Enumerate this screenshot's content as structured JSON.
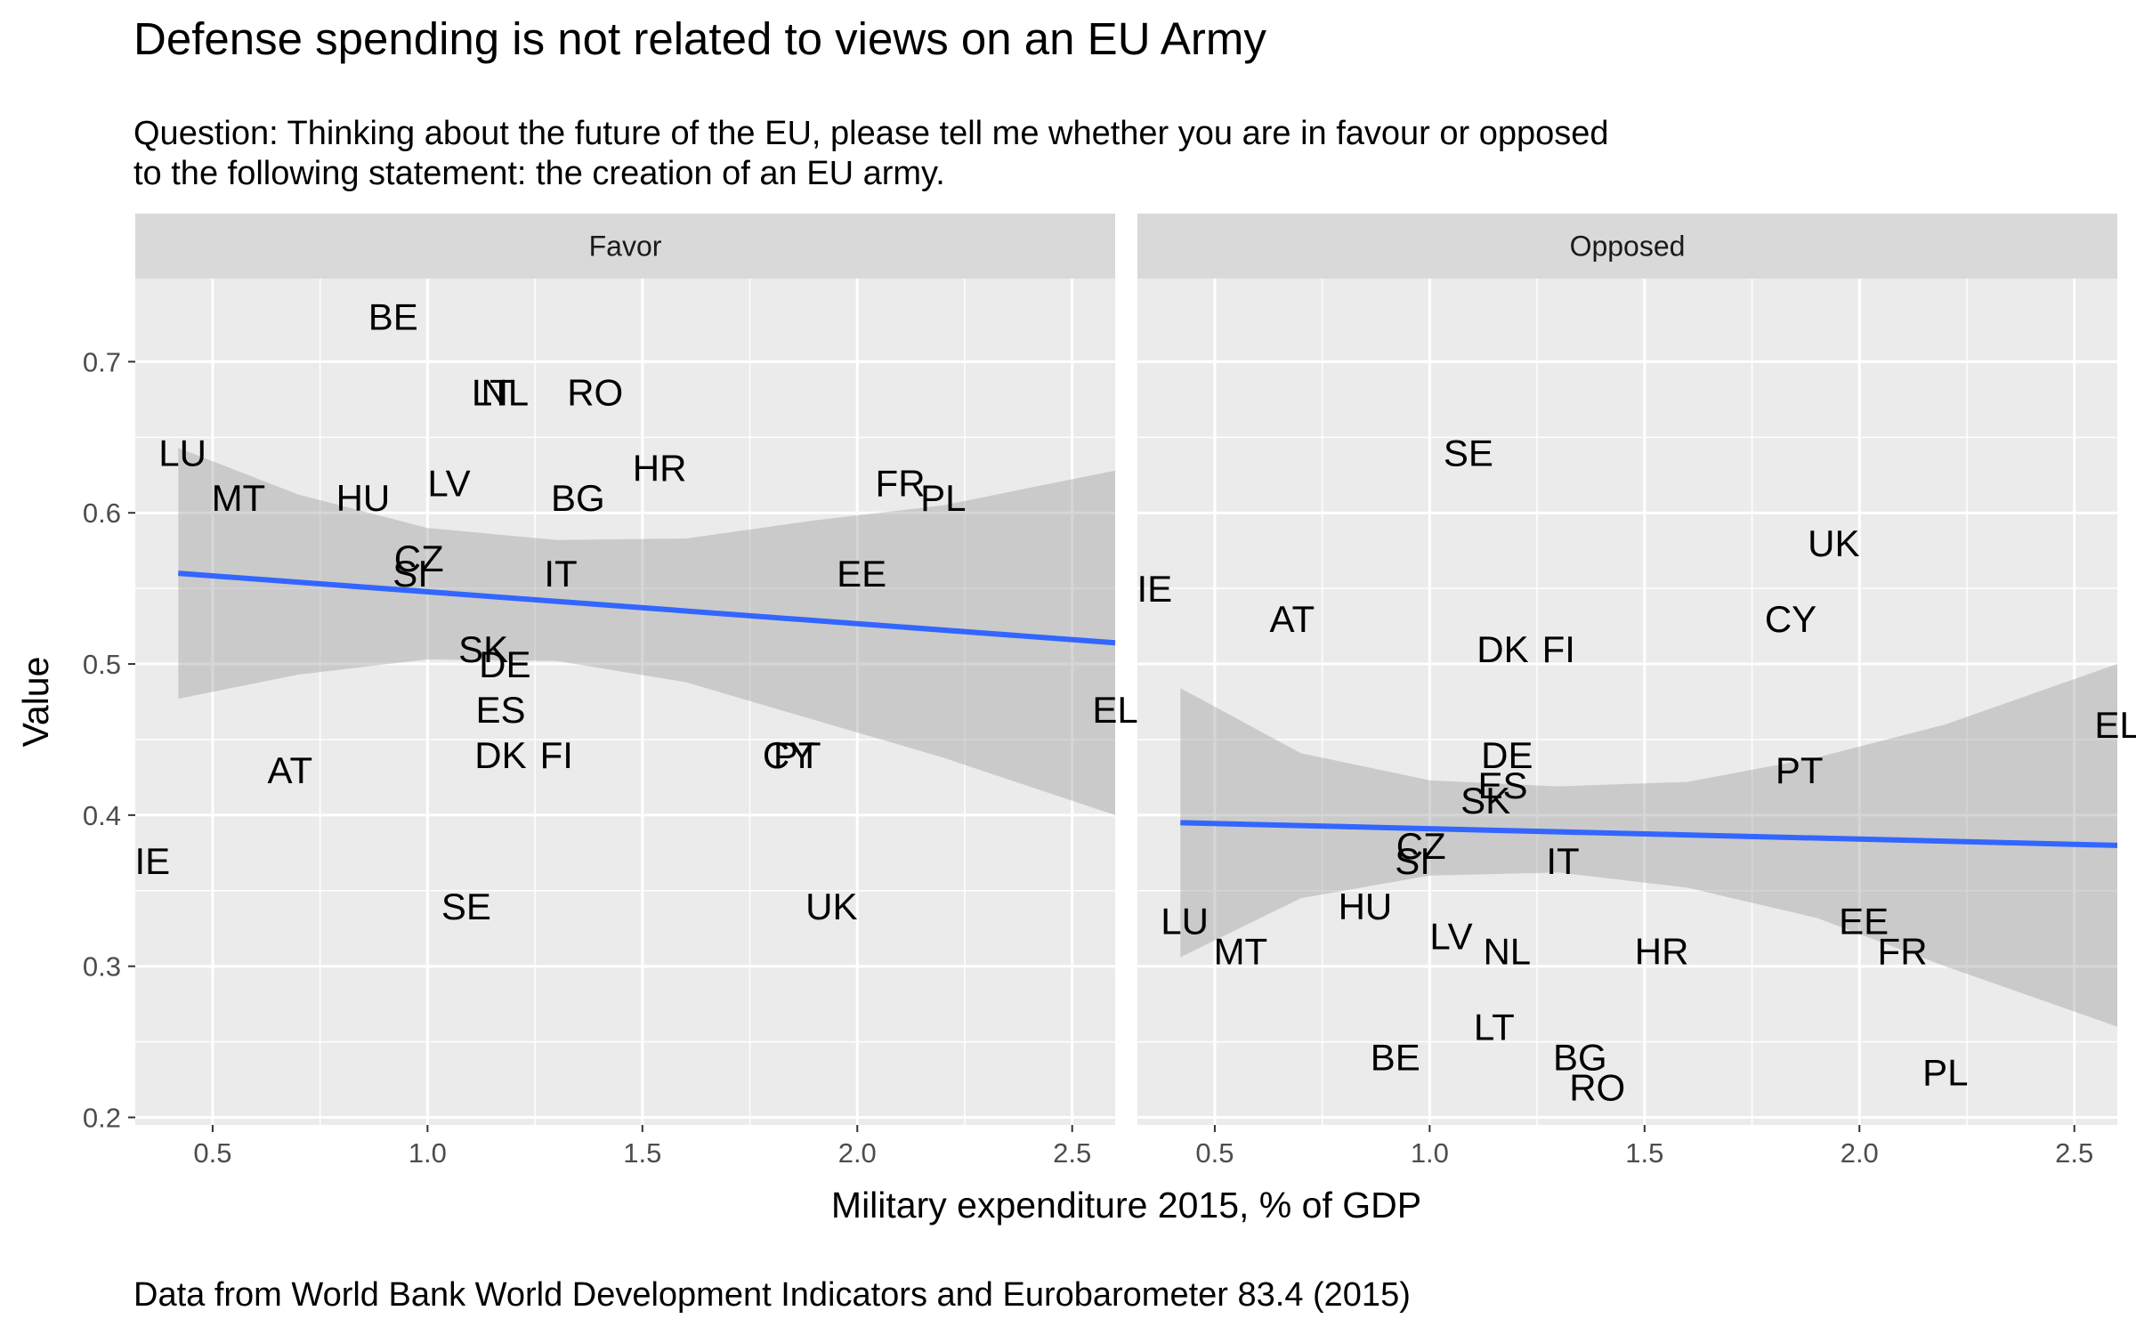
{
  "title": "Defense spending is not related to views on an EU Army",
  "subtitle": "Question: Thinking about the future of the EU, please tell me whether you are in favour or opposed\nto the following statement: the creation of an EU army.",
  "caption": "Data from World Bank World Development Indicators and Eurobarometer 83.4 (2015)",
  "chart_data": {
    "type": "scatter",
    "xlabel": "Military expenditure 2015, % of GDP",
    "ylabel": "Value",
    "xlim": [
      0.32,
      2.6
    ],
    "ylim": [
      0.195,
      0.755
    ],
    "x_ticks": [
      0.5,
      1.0,
      1.5,
      2.0,
      2.5
    ],
    "x_tick_labels": [
      "0.5",
      "1.0",
      "1.5",
      "2.0",
      "2.5"
    ],
    "y_ticks": [
      0.2,
      0.3,
      0.4,
      0.5,
      0.6,
      0.7
    ],
    "y_tick_labels": [
      "0.2",
      "0.3",
      "0.4",
      "0.5",
      "0.6",
      "0.7"
    ],
    "grid": true,
    "colors": {
      "panel_bg": "#ebebeb",
      "strip_bg": "#d9d9d9",
      "grid": "#ffffff",
      "trend": "#3366ff",
      "ribbon": "#999999"
    },
    "facets": [
      {
        "name": "Favor",
        "trend": {
          "x": [
            0.42,
            2.6
          ],
          "y": [
            0.56,
            0.514
          ]
        },
        "ribbon": {
          "x": [
            0.42,
            0.7,
            1.0,
            1.3,
            1.6,
            1.9,
            2.2,
            2.6
          ],
          "upper": [
            0.643,
            0.612,
            0.59,
            0.582,
            0.583,
            0.595,
            0.605,
            0.628
          ],
          "lower": [
            0.477,
            0.493,
            0.503,
            0.502,
            0.488,
            0.463,
            0.438,
            0.4
          ]
        },
        "points": [
          {
            "label": "BE",
            "x": 0.92,
            "y": 0.73
          },
          {
            "label": "LT",
            "x": 1.15,
            "y": 0.68
          },
          {
            "label": "NL",
            "x": 1.18,
            "y": 0.68
          },
          {
            "label": "RO",
            "x": 1.39,
            "y": 0.68
          },
          {
            "label": "LU",
            "x": 0.43,
            "y": 0.64
          },
          {
            "label": "HR",
            "x": 1.54,
            "y": 0.63
          },
          {
            "label": "LV",
            "x": 1.05,
            "y": 0.62
          },
          {
            "label": "FR",
            "x": 2.1,
            "y": 0.62
          },
          {
            "label": "MT",
            "x": 0.56,
            "y": 0.61
          },
          {
            "label": "HU",
            "x": 0.85,
            "y": 0.61
          },
          {
            "label": "BG",
            "x": 1.35,
            "y": 0.61
          },
          {
            "label": "PL",
            "x": 2.2,
            "y": 0.61
          },
          {
            "label": "CZ",
            "x": 0.98,
            "y": 0.57
          },
          {
            "label": "SI",
            "x": 0.96,
            "y": 0.56
          },
          {
            "label": "IT",
            "x": 1.31,
            "y": 0.56
          },
          {
            "label": "EE",
            "x": 2.01,
            "y": 0.56
          },
          {
            "label": "SK",
            "x": 1.13,
            "y": 0.51
          },
          {
            "label": "DE",
            "x": 1.18,
            "y": 0.5
          },
          {
            "label": "ES",
            "x": 1.17,
            "y": 0.47
          },
          {
            "label": "EL",
            "x": 2.6,
            "y": 0.47
          },
          {
            "label": "DK",
            "x": 1.17,
            "y": 0.44
          },
          {
            "label": "FI",
            "x": 1.3,
            "y": 0.44
          },
          {
            "label": "CY",
            "x": 1.84,
            "y": 0.44
          },
          {
            "label": "PT",
            "x": 1.86,
            "y": 0.44
          },
          {
            "label": "AT",
            "x": 0.68,
            "y": 0.43
          },
          {
            "label": "IE",
            "x": 0.36,
            "y": 0.37
          },
          {
            "label": "SE",
            "x": 1.09,
            "y": 0.34
          },
          {
            "label": "UK",
            "x": 1.94,
            "y": 0.34
          }
        ]
      },
      {
        "name": "Opposed",
        "trend": {
          "x": [
            0.42,
            2.6
          ],
          "y": [
            0.395,
            0.38
          ]
        },
        "ribbon": {
          "x": [
            0.42,
            0.7,
            1.0,
            1.3,
            1.6,
            1.9,
            2.2,
            2.6
          ],
          "upper": [
            0.484,
            0.441,
            0.423,
            0.419,
            0.422,
            0.438,
            0.46,
            0.5
          ],
          "lower": [
            0.306,
            0.345,
            0.36,
            0.362,
            0.352,
            0.332,
            0.3,
            0.26
          ]
        },
        "points": [
          {
            "label": "SE",
            "x": 1.09,
            "y": 0.64
          },
          {
            "label": "UK",
            "x": 1.94,
            "y": 0.58
          },
          {
            "label": "IE",
            "x": 0.36,
            "y": 0.55
          },
          {
            "label": "AT",
            "x": 0.68,
            "y": 0.53
          },
          {
            "label": "CY",
            "x": 1.84,
            "y": 0.53
          },
          {
            "label": "DK",
            "x": 1.17,
            "y": 0.51
          },
          {
            "label": "FI",
            "x": 1.3,
            "y": 0.51
          },
          {
            "label": "EL",
            "x": 2.6,
            "y": 0.46
          },
          {
            "label": "DE",
            "x": 1.18,
            "y": 0.44
          },
          {
            "label": "PT",
            "x": 1.86,
            "y": 0.43
          },
          {
            "label": "ES",
            "x": 1.17,
            "y": 0.42
          },
          {
            "label": "SK",
            "x": 1.13,
            "y": 0.41
          },
          {
            "label": "CZ",
            "x": 0.98,
            "y": 0.38
          },
          {
            "label": "SI",
            "x": 0.96,
            "y": 0.37
          },
          {
            "label": "IT",
            "x": 1.31,
            "y": 0.37
          },
          {
            "label": "HU",
            "x": 0.85,
            "y": 0.34
          },
          {
            "label": "LU",
            "x": 0.43,
            "y": 0.33
          },
          {
            "label": "EE",
            "x": 2.01,
            "y": 0.33
          },
          {
            "label": "LV",
            "x": 1.05,
            "y": 0.32
          },
          {
            "label": "MT",
            "x": 0.56,
            "y": 0.31
          },
          {
            "label": "NL",
            "x": 1.18,
            "y": 0.31
          },
          {
            "label": "HR",
            "x": 1.54,
            "y": 0.31
          },
          {
            "label": "FR",
            "x": 2.1,
            "y": 0.31
          },
          {
            "label": "LT",
            "x": 1.15,
            "y": 0.26
          },
          {
            "label": "BE",
            "x": 0.92,
            "y": 0.24
          },
          {
            "label": "BG",
            "x": 1.35,
            "y": 0.24
          },
          {
            "label": "PL",
            "x": 2.2,
            "y": 0.23
          },
          {
            "label": "RO",
            "x": 1.39,
            "y": 0.22
          }
        ]
      }
    ]
  }
}
